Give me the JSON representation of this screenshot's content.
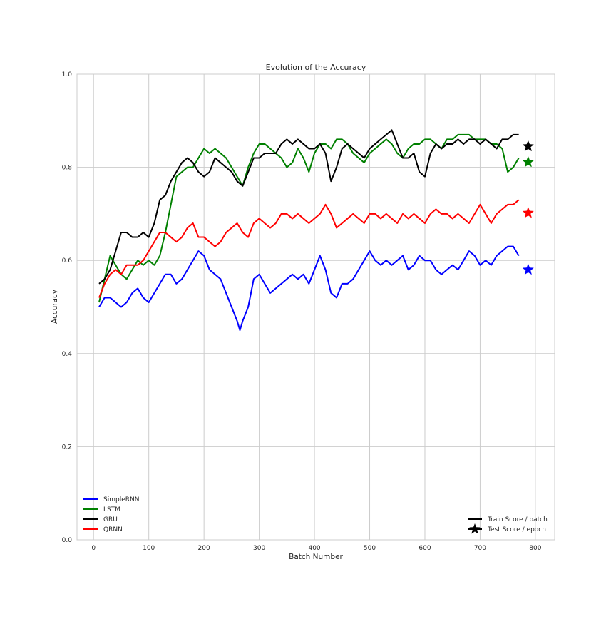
{
  "chart_data": {
    "type": "line",
    "title": "Evolution of the Accuracy",
    "xlabel": "Batch Number",
    "ylabel": "Accuracy",
    "xlim": [
      -30,
      835
    ],
    "ylim": [
      0.0,
      1.0
    ],
    "xticks": [
      "0",
      "100",
      "200",
      "300",
      "400",
      "500",
      "600",
      "700",
      "800"
    ],
    "yticks": [
      "0.0",
      "0.2",
      "0.4",
      "0.6",
      "0.8",
      "1.0"
    ],
    "grid": true,
    "series": [
      {
        "name": "SimpleRNN",
        "color": "#0000ff",
        "x": [
          10,
          20,
          30,
          40,
          50,
          60,
          70,
          80,
          90,
          100,
          110,
          120,
          130,
          140,
          150,
          160,
          170,
          180,
          190,
          200,
          210,
          220,
          230,
          240,
          250,
          260,
          265,
          270,
          280,
          290,
          300,
          310,
          320,
          330,
          340,
          350,
          360,
          370,
          380,
          390,
          400,
          410,
          420,
          430,
          440,
          450,
          460,
          470,
          480,
          490,
          500,
          510,
          520,
          530,
          540,
          550,
          560,
          570,
          580,
          590,
          600,
          610,
          620,
          630,
          640,
          650,
          660,
          670,
          680,
          690,
          700,
          710,
          720,
          730,
          740,
          750,
          760,
          770
        ],
        "values": [
          0.5,
          0.52,
          0.52,
          0.51,
          0.5,
          0.51,
          0.53,
          0.54,
          0.52,
          0.51,
          0.53,
          0.55,
          0.57,
          0.57,
          0.55,
          0.56,
          0.58,
          0.6,
          0.62,
          0.61,
          0.58,
          0.57,
          0.56,
          0.53,
          0.5,
          0.47,
          0.45,
          0.47,
          0.5,
          0.56,
          0.57,
          0.55,
          0.53,
          0.54,
          0.55,
          0.56,
          0.57,
          0.56,
          0.57,
          0.55,
          0.58,
          0.61,
          0.58,
          0.53,
          0.52,
          0.55,
          0.55,
          0.56,
          0.58,
          0.6,
          0.62,
          0.6,
          0.59,
          0.6,
          0.59,
          0.6,
          0.61,
          0.58,
          0.59,
          0.61,
          0.6,
          0.6,
          0.58,
          0.57,
          0.58,
          0.59,
          0.58,
          0.6,
          0.62,
          0.61,
          0.59,
          0.6,
          0.59,
          0.61,
          0.62,
          0.63,
          0.63,
          0.61
        ]
      },
      {
        "name": "LSTM",
        "color": "#008000",
        "x": [
          10,
          20,
          30,
          40,
          50,
          60,
          70,
          80,
          90,
          100,
          110,
          120,
          130,
          140,
          150,
          160,
          170,
          180,
          190,
          200,
          210,
          220,
          230,
          240,
          250,
          260,
          270,
          280,
          290,
          300,
          310,
          320,
          330,
          340,
          350,
          360,
          370,
          380,
          390,
          400,
          410,
          420,
          430,
          440,
          450,
          460,
          470,
          480,
          490,
          500,
          510,
          520,
          530,
          540,
          550,
          560,
          570,
          580,
          590,
          600,
          610,
          620,
          630,
          640,
          650,
          660,
          670,
          680,
          690,
          700,
          710,
          720,
          730,
          740,
          750,
          760,
          770
        ],
        "values": [
          0.51,
          0.56,
          0.61,
          0.59,
          0.57,
          0.56,
          0.58,
          0.6,
          0.59,
          0.6,
          0.59,
          0.61,
          0.66,
          0.72,
          0.78,
          0.79,
          0.8,
          0.8,
          0.82,
          0.84,
          0.83,
          0.84,
          0.83,
          0.82,
          0.8,
          0.78,
          0.76,
          0.8,
          0.83,
          0.85,
          0.85,
          0.84,
          0.83,
          0.82,
          0.8,
          0.81,
          0.84,
          0.82,
          0.79,
          0.83,
          0.85,
          0.85,
          0.84,
          0.86,
          0.86,
          0.85,
          0.83,
          0.82,
          0.81,
          0.83,
          0.84,
          0.85,
          0.86,
          0.85,
          0.83,
          0.82,
          0.84,
          0.85,
          0.85,
          0.86,
          0.86,
          0.85,
          0.84,
          0.86,
          0.86,
          0.87,
          0.87,
          0.87,
          0.86,
          0.86,
          0.86,
          0.85,
          0.85,
          0.84,
          0.79,
          0.8,
          0.82
        ]
      },
      {
        "name": "GRU",
        "color": "#000000",
        "x": [
          10,
          20,
          30,
          40,
          50,
          60,
          70,
          80,
          90,
          100,
          110,
          120,
          130,
          140,
          150,
          160,
          170,
          180,
          190,
          200,
          210,
          220,
          230,
          240,
          250,
          260,
          270,
          280,
          290,
          300,
          310,
          320,
          330,
          340,
          350,
          360,
          370,
          380,
          390,
          400,
          410,
          420,
          430,
          440,
          450,
          460,
          470,
          480,
          490,
          500,
          510,
          520,
          530,
          540,
          550,
          560,
          570,
          580,
          590,
          600,
          610,
          620,
          630,
          640,
          650,
          660,
          670,
          680,
          690,
          700,
          710,
          720,
          730,
          740,
          750,
          760,
          770
        ],
        "values": [
          0.55,
          0.56,
          0.58,
          0.62,
          0.66,
          0.66,
          0.65,
          0.65,
          0.66,
          0.65,
          0.68,
          0.73,
          0.74,
          0.77,
          0.79,
          0.81,
          0.82,
          0.81,
          0.79,
          0.78,
          0.79,
          0.82,
          0.81,
          0.8,
          0.79,
          0.77,
          0.76,
          0.79,
          0.82,
          0.82,
          0.83,
          0.83,
          0.83,
          0.85,
          0.86,
          0.85,
          0.86,
          0.85,
          0.84,
          0.84,
          0.85,
          0.83,
          0.77,
          0.8,
          0.84,
          0.85,
          0.84,
          0.83,
          0.82,
          0.84,
          0.85,
          0.86,
          0.87,
          0.88,
          0.85,
          0.82,
          0.82,
          0.83,
          0.79,
          0.78,
          0.83,
          0.85,
          0.84,
          0.85,
          0.85,
          0.86,
          0.85,
          0.86,
          0.86,
          0.85,
          0.86,
          0.85,
          0.84,
          0.86,
          0.86,
          0.87,
          0.87
        ]
      },
      {
        "name": "QRNN",
        "color": "#ff0000",
        "x": [
          10,
          20,
          30,
          40,
          50,
          60,
          70,
          80,
          90,
          100,
          110,
          120,
          130,
          140,
          150,
          160,
          170,
          180,
          190,
          200,
          210,
          220,
          230,
          240,
          250,
          260,
          270,
          280,
          290,
          300,
          310,
          320,
          330,
          340,
          350,
          360,
          370,
          380,
          390,
          400,
          410,
          420,
          430,
          440,
          450,
          460,
          470,
          480,
          490,
          500,
          510,
          520,
          530,
          540,
          550,
          560,
          570,
          580,
          590,
          600,
          610,
          620,
          630,
          640,
          650,
          660,
          670,
          680,
          690,
          700,
          710,
          720,
          730,
          740,
          750,
          760,
          770
        ],
        "values": [
          0.52,
          0.55,
          0.57,
          0.58,
          0.57,
          0.59,
          0.59,
          0.59,
          0.6,
          0.62,
          0.64,
          0.66,
          0.66,
          0.65,
          0.64,
          0.65,
          0.67,
          0.68,
          0.65,
          0.65,
          0.64,
          0.63,
          0.64,
          0.66,
          0.67,
          0.68,
          0.66,
          0.65,
          0.68,
          0.69,
          0.68,
          0.67,
          0.68,
          0.7,
          0.7,
          0.69,
          0.7,
          0.69,
          0.68,
          0.69,
          0.7,
          0.72,
          0.7,
          0.67,
          0.68,
          0.69,
          0.7,
          0.69,
          0.68,
          0.7,
          0.7,
          0.69,
          0.7,
          0.69,
          0.68,
          0.7,
          0.69,
          0.7,
          0.69,
          0.68,
          0.7,
          0.71,
          0.7,
          0.7,
          0.69,
          0.7,
          0.69,
          0.68,
          0.7,
          0.72,
          0.7,
          0.68,
          0.7,
          0.71,
          0.72,
          0.72,
          0.73
        ]
      }
    ],
    "test_scores": [
      {
        "name": "GRU",
        "x": 787,
        "value": 0.845,
        "color": "#000000"
      },
      {
        "name": "LSTM",
        "x": 787,
        "value": 0.811,
        "color": "#008000"
      },
      {
        "name": "QRNN",
        "x": 787,
        "value": 0.702,
        "color": "#ff0000"
      },
      {
        "name": "SimpleRNN",
        "x": 787,
        "value": 0.58,
        "color": "#0000ff"
      }
    ],
    "legend_series_placement": "lower-left",
    "legend_markers_placement": "lower-right",
    "legend_markers": [
      {
        "label": "Train Score / batch",
        "marker": "line",
        "color": "#000000"
      },
      {
        "label": "Test Score / epoch",
        "marker": "star",
        "color": "#000000"
      }
    ]
  }
}
